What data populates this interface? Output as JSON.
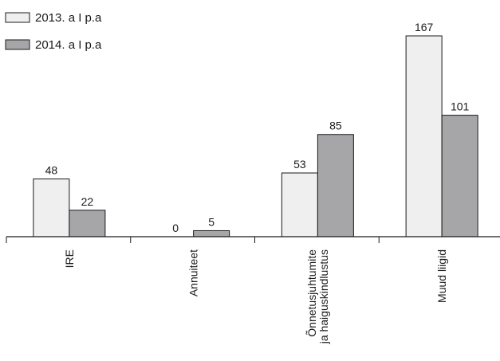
{
  "chart_data": {
    "type": "bar",
    "title": "",
    "xlabel": "",
    "ylabel": "",
    "ylim": [
      0,
      175
    ],
    "grid": false,
    "legend_position": "top-left",
    "categories": [
      "IRE",
      "Annuiteet",
      "Õnnetusjuhtumite\nja haiguskindlustus",
      "Muud liigid"
    ],
    "series": [
      {
        "name": "2013. a I p.a",
        "values": [
          48,
          0,
          53,
          167
        ],
        "color": "#efefef"
      },
      {
        "name": "2014. a I p.a",
        "values": [
          22,
          5,
          85,
          101
        ],
        "color": "#a6a6a8"
      }
    ],
    "axis_color": "#1a1a1a",
    "bar_stroke": "#1a1a1a"
  }
}
